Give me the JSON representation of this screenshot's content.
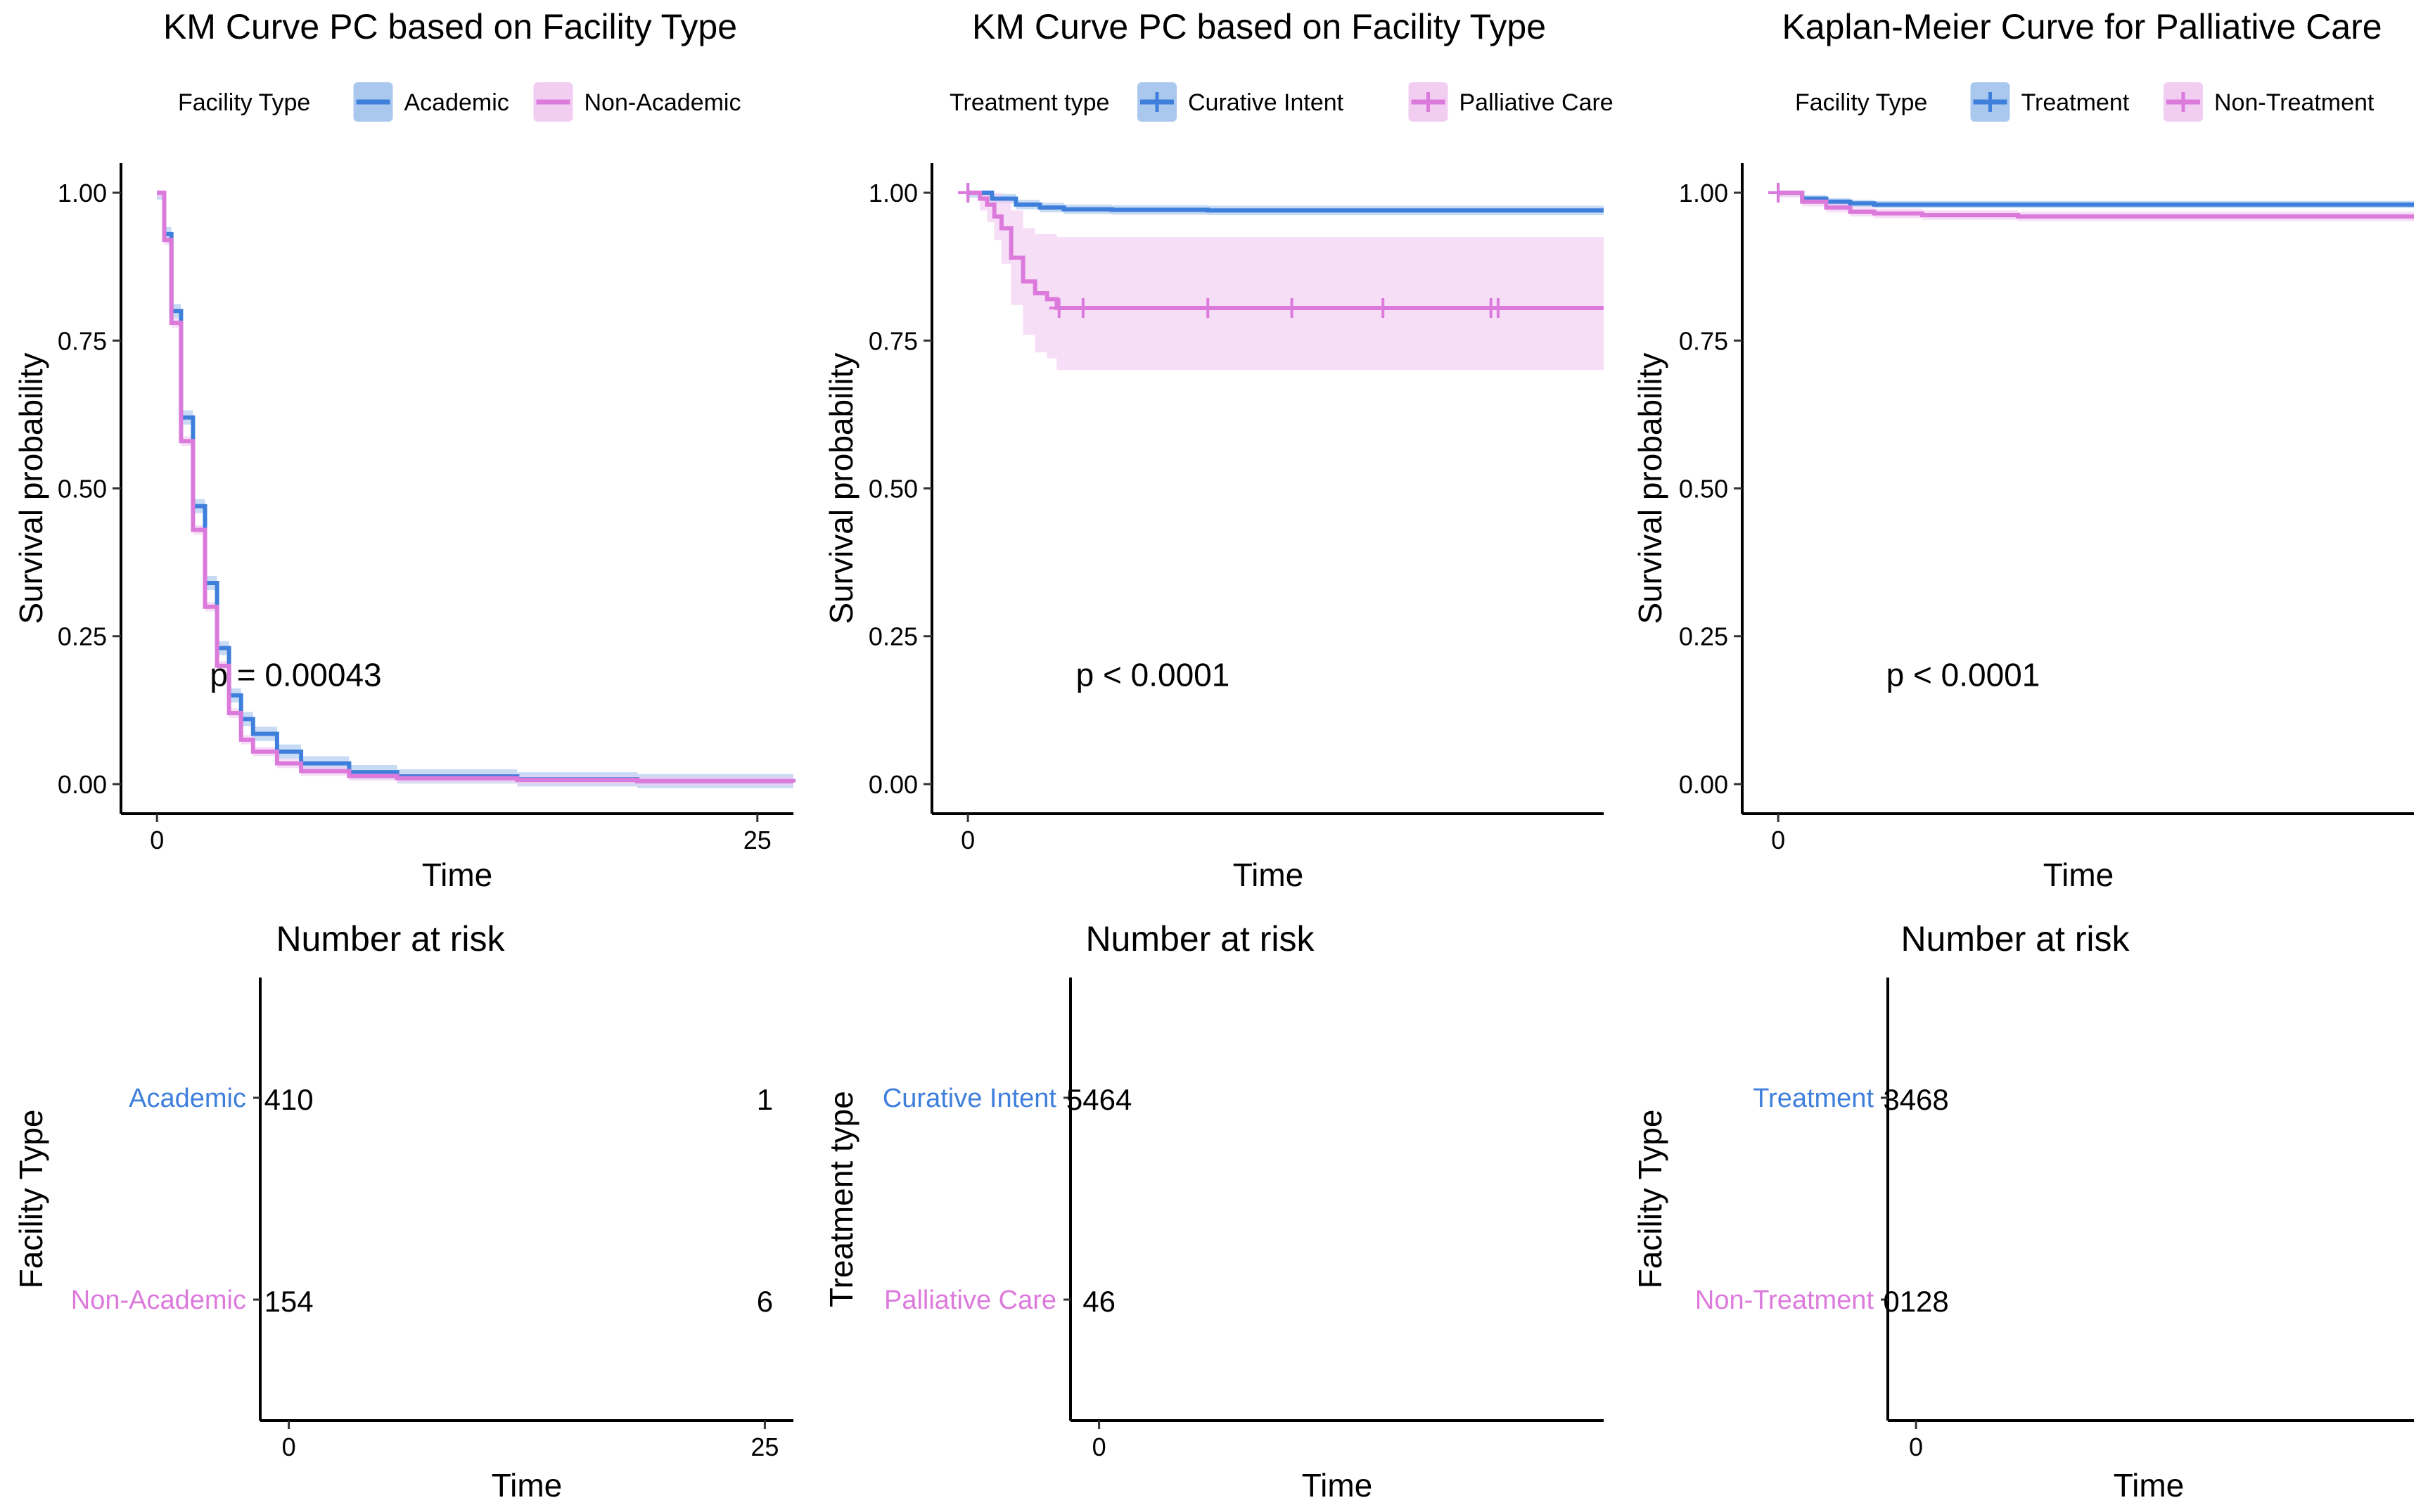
{
  "colors": {
    "academic_blue": "#3f7fdc",
    "pink": "#dc7adc",
    "blue_band": "#aac7ee",
    "pink_band": "#f2cdf2",
    "axis": "#000000"
  },
  "chart_data": [
    {
      "type": "line",
      "title": "KM Curve PC based on Facility Type",
      "legend": {
        "title": "Facility Type",
        "placement": "top",
        "entries": [
          "Academic",
          "Non-Academic"
        ]
      },
      "xlabel": "Time",
      "ylabel": "Survival probability",
      "xlim": [
        -1.5,
        26.5
      ],
      "ylim": [
        -0.05,
        1.05
      ],
      "xticks": [
        0,
        25
      ],
      "xtick_labels": [
        "0",
        "25"
      ],
      "yticks": [
        0,
        0.25,
        0.5,
        0.75,
        1
      ],
      "ytick_labels": [
        "0.00",
        "0.25",
        "0.50",
        "0.75",
        "1.00"
      ],
      "pvalue": "p = 0.00043",
      "pvalue_pos": [
        2.2,
        0.18
      ],
      "series": [
        {
          "name": "Academic",
          "color": "#3f7fdc",
          "band_color": "#aac7ee",
          "x": [
            0,
            0.3,
            0.6,
            1,
            1.5,
            2,
            2.5,
            3,
            3.5,
            4,
            5,
            6,
            8,
            10,
            15,
            20,
            26.5
          ],
          "y": [
            1,
            0.93,
            0.8,
            0.62,
            0.47,
            0.34,
            0.23,
            0.15,
            0.11,
            0.085,
            0.055,
            0.035,
            0.02,
            0.013,
            0.008,
            0.005,
            0.003
          ],
          "band": 0.012,
          "censors": []
        },
        {
          "name": "Non-Academic",
          "color": "#dc7adc",
          "band_color": "#f2cdf2",
          "x": [
            0,
            0.3,
            0.6,
            1,
            1.5,
            2,
            2.5,
            3,
            3.5,
            4,
            5,
            6,
            8,
            10,
            15,
            20,
            26.5
          ],
          "y": [
            1,
            0.92,
            0.78,
            0.58,
            0.43,
            0.3,
            0.2,
            0.12,
            0.075,
            0.055,
            0.035,
            0.022,
            0.014,
            0.01,
            0.007,
            0.005,
            0.003
          ],
          "band": 0.008,
          "censors": []
        }
      ],
      "risk": {
        "title": "Number at risk",
        "xlabel": "Time",
        "ylabel": "Facility Type",
        "xlim": [
          -1.5,
          26.5
        ],
        "xticks": [
          0,
          25
        ],
        "xtick_labels": [
          "0",
          "25"
        ],
        "rows": [
          {
            "label": "Academic",
            "color": "#3f7fdc",
            "values": [
              "410",
              "1"
            ],
            "at": [
              0,
              25
            ]
          },
          {
            "label": "Non-Academic",
            "color": "#dc7adc",
            "values": [
              "154",
              "6"
            ],
            "at": [
              0,
              25
            ]
          }
        ]
      }
    },
    {
      "type": "line",
      "title": "KM Curve PC based on Facility Type",
      "legend": {
        "title": "Treatment type",
        "placement": "top",
        "entries": [
          "Curative Intent",
          "Palliative Care"
        ]
      },
      "xlabel": "Time",
      "ylabel": "Survival probability",
      "xlim": [
        -1.5,
        26.5
      ],
      "ylim": [
        -0.05,
        1.05
      ],
      "xticks": [
        0
      ],
      "xtick_labels": [
        "0"
      ],
      "yticks": [
        0,
        0.25,
        0.5,
        0.75,
        1
      ],
      "ytick_labels": [
        "0.00",
        "0.25",
        "0.50",
        "0.75",
        "1.00"
      ],
      "pvalue": "p < 0.0001",
      "pvalue_pos": [
        4.5,
        0.18
      ],
      "series": [
        {
          "name": "Curative Intent",
          "color": "#3f7fdc",
          "band_color": "#aac7ee",
          "x": [
            0,
            1,
            2,
            3,
            4,
            6,
            10,
            26.5
          ],
          "y": [
            1,
            0.99,
            0.98,
            0.975,
            0.972,
            0.971,
            0.97,
            0.97
          ],
          "band": 0.008,
          "censors": [
            0
          ]
        },
        {
          "name": "Palliative Care",
          "color": "#dc7adc",
          "band_color": "#f2cdf2",
          "x": [
            0,
            0.5,
            0.8,
            1.1,
            1.4,
            1.8,
            2.3,
            2.8,
            3.3,
            3.7,
            26.5
          ],
          "y": [
            1,
            0.99,
            0.98,
            0.96,
            0.94,
            0.89,
            0.85,
            0.83,
            0.82,
            0.805,
            0.805
          ],
          "band_lower": [
            1,
            0.97,
            0.95,
            0.92,
            0.88,
            0.81,
            0.76,
            0.73,
            0.72,
            0.7,
            0.7
          ],
          "band_upper": [
            1,
            1,
            1,
            1,
            0.99,
            0.97,
            0.94,
            0.93,
            0.93,
            0.925,
            0.925
          ],
          "censors": [
            0,
            3.8,
            4.8,
            10,
            13.5,
            17.3,
            21.8,
            22.1
          ]
        }
      ],
      "risk": {
        "title": "Number at risk",
        "xlabel": "Time",
        "ylabel": "Treatment type",
        "xlim": [
          -1.5,
          26.5
        ],
        "xticks": [
          0
        ],
        "xtick_labels": [
          "0"
        ],
        "rows": [
          {
            "label": "Curative Intent",
            "color": "#3f7fdc",
            "values": [
              "5464"
            ],
            "at": [
              0
            ]
          },
          {
            "label": "Palliative Care",
            "color": "#dc7adc",
            "values": [
              "46"
            ],
            "at": [
              0
            ]
          }
        ]
      }
    },
    {
      "type": "line",
      "title": "Kaplan-Meier Curve for Palliative Care",
      "legend": {
        "title": "Facility Type",
        "placement": "top",
        "entries": [
          "Treatment",
          "Non-Treatment"
        ]
      },
      "xlabel": "Time",
      "ylabel": "Survival probability",
      "xlim": [
        -1.5,
        26.5
      ],
      "ylim": [
        -0.05,
        1.05
      ],
      "xticks": [
        0
      ],
      "xtick_labels": [
        "0"
      ],
      "yticks": [
        0,
        0.25,
        0.5,
        0.75,
        1
      ],
      "ytick_labels": [
        "0.00",
        "0.25",
        "0.50",
        "0.75",
        "1.00"
      ],
      "pvalue": "p < 0.0001",
      "pvalue_pos": [
        4.5,
        0.18
      ],
      "series": [
        {
          "name": "Treatment",
          "color": "#3f7fdc",
          "band_color": "#aac7ee",
          "x": [
            0,
            1,
            2,
            3,
            4,
            6,
            10,
            26.5
          ],
          "y": [
            1,
            0.99,
            0.985,
            0.982,
            0.98,
            0.98,
            0.98,
            0.98
          ],
          "band": 0.006,
          "censors": [
            0
          ]
        },
        {
          "name": "Non-Treatment",
          "color": "#dc7adc",
          "band_color": "#f2cdf2",
          "x": [
            0,
            1,
            2,
            3,
            4,
            6,
            10,
            26.5
          ],
          "y": [
            1,
            0.985,
            0.975,
            0.968,
            0.965,
            0.962,
            0.96,
            0.96
          ],
          "band": 0.008,
          "censors": [
            0
          ]
        }
      ],
      "risk": {
        "title": "Number at risk",
        "xlabel": "Time",
        "ylabel": "Facility Type",
        "xlim": [
          -1.5,
          26.5
        ],
        "xticks": [
          0
        ],
        "xtick_labels": [
          "0"
        ],
        "rows": [
          {
            "label": "Treatment",
            "color": "#3f7fdc",
            "values": [
              "3468"
            ],
            "at": [
              0
            ]
          },
          {
            "label": "Non-Treatment",
            "color": "#dc7adc",
            "values": [
              "0128"
            ],
            "at": [
              0
            ]
          }
        ]
      }
    }
  ]
}
